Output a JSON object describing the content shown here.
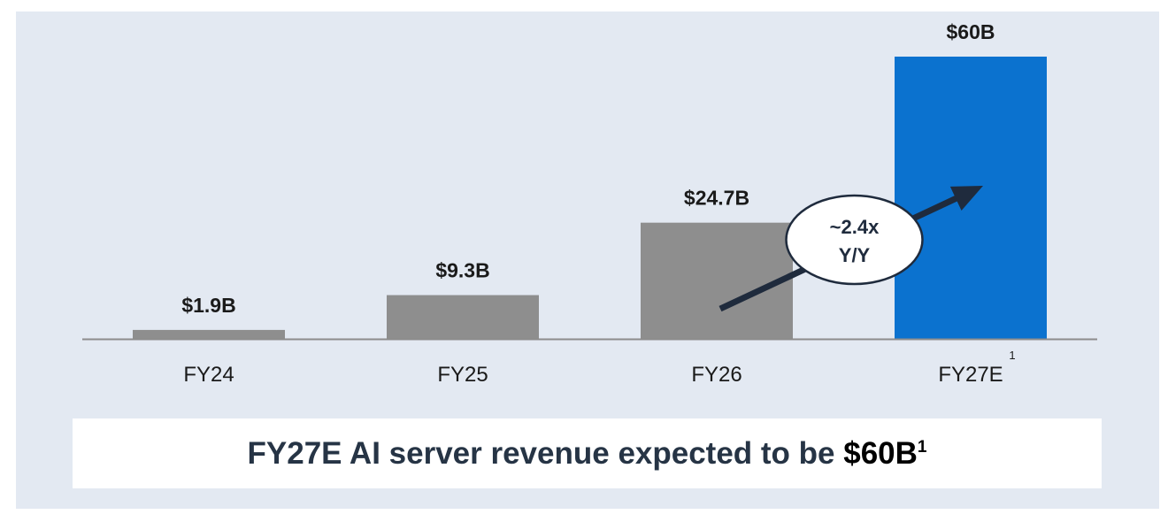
{
  "chart_data": {
    "type": "bar",
    "categories": [
      "FY24",
      "FY25",
      "FY26",
      "FY27E"
    ],
    "category_superscripts": [
      "",
      "",
      "",
      "1"
    ],
    "values": [
      1.9,
      9.3,
      24.7,
      60
    ],
    "data_labels": [
      "$1.9B",
      "$9.3B",
      "$24.7B",
      "$60B"
    ],
    "bar_colors": [
      "#8e8e8e",
      "#8e8e8e",
      "#8e8e8e",
      "#0b72cf"
    ],
    "ylim": [
      0,
      60
    ],
    "grid": false,
    "legend": "none",
    "annotation": {
      "line1": "~2.4x",
      "line2": "Y/Y",
      "from_category": "FY26",
      "to_category": "FY27E"
    }
  },
  "footer": {
    "text_before": "FY27E AI server revenue expected to be ",
    "highlight": "$60B",
    "superscript": "1"
  },
  "colors": {
    "background_panel": "#e3e9f2",
    "axis": "#8c8c8c",
    "arrow": "#1f2b3d",
    "text": "#263445"
  }
}
